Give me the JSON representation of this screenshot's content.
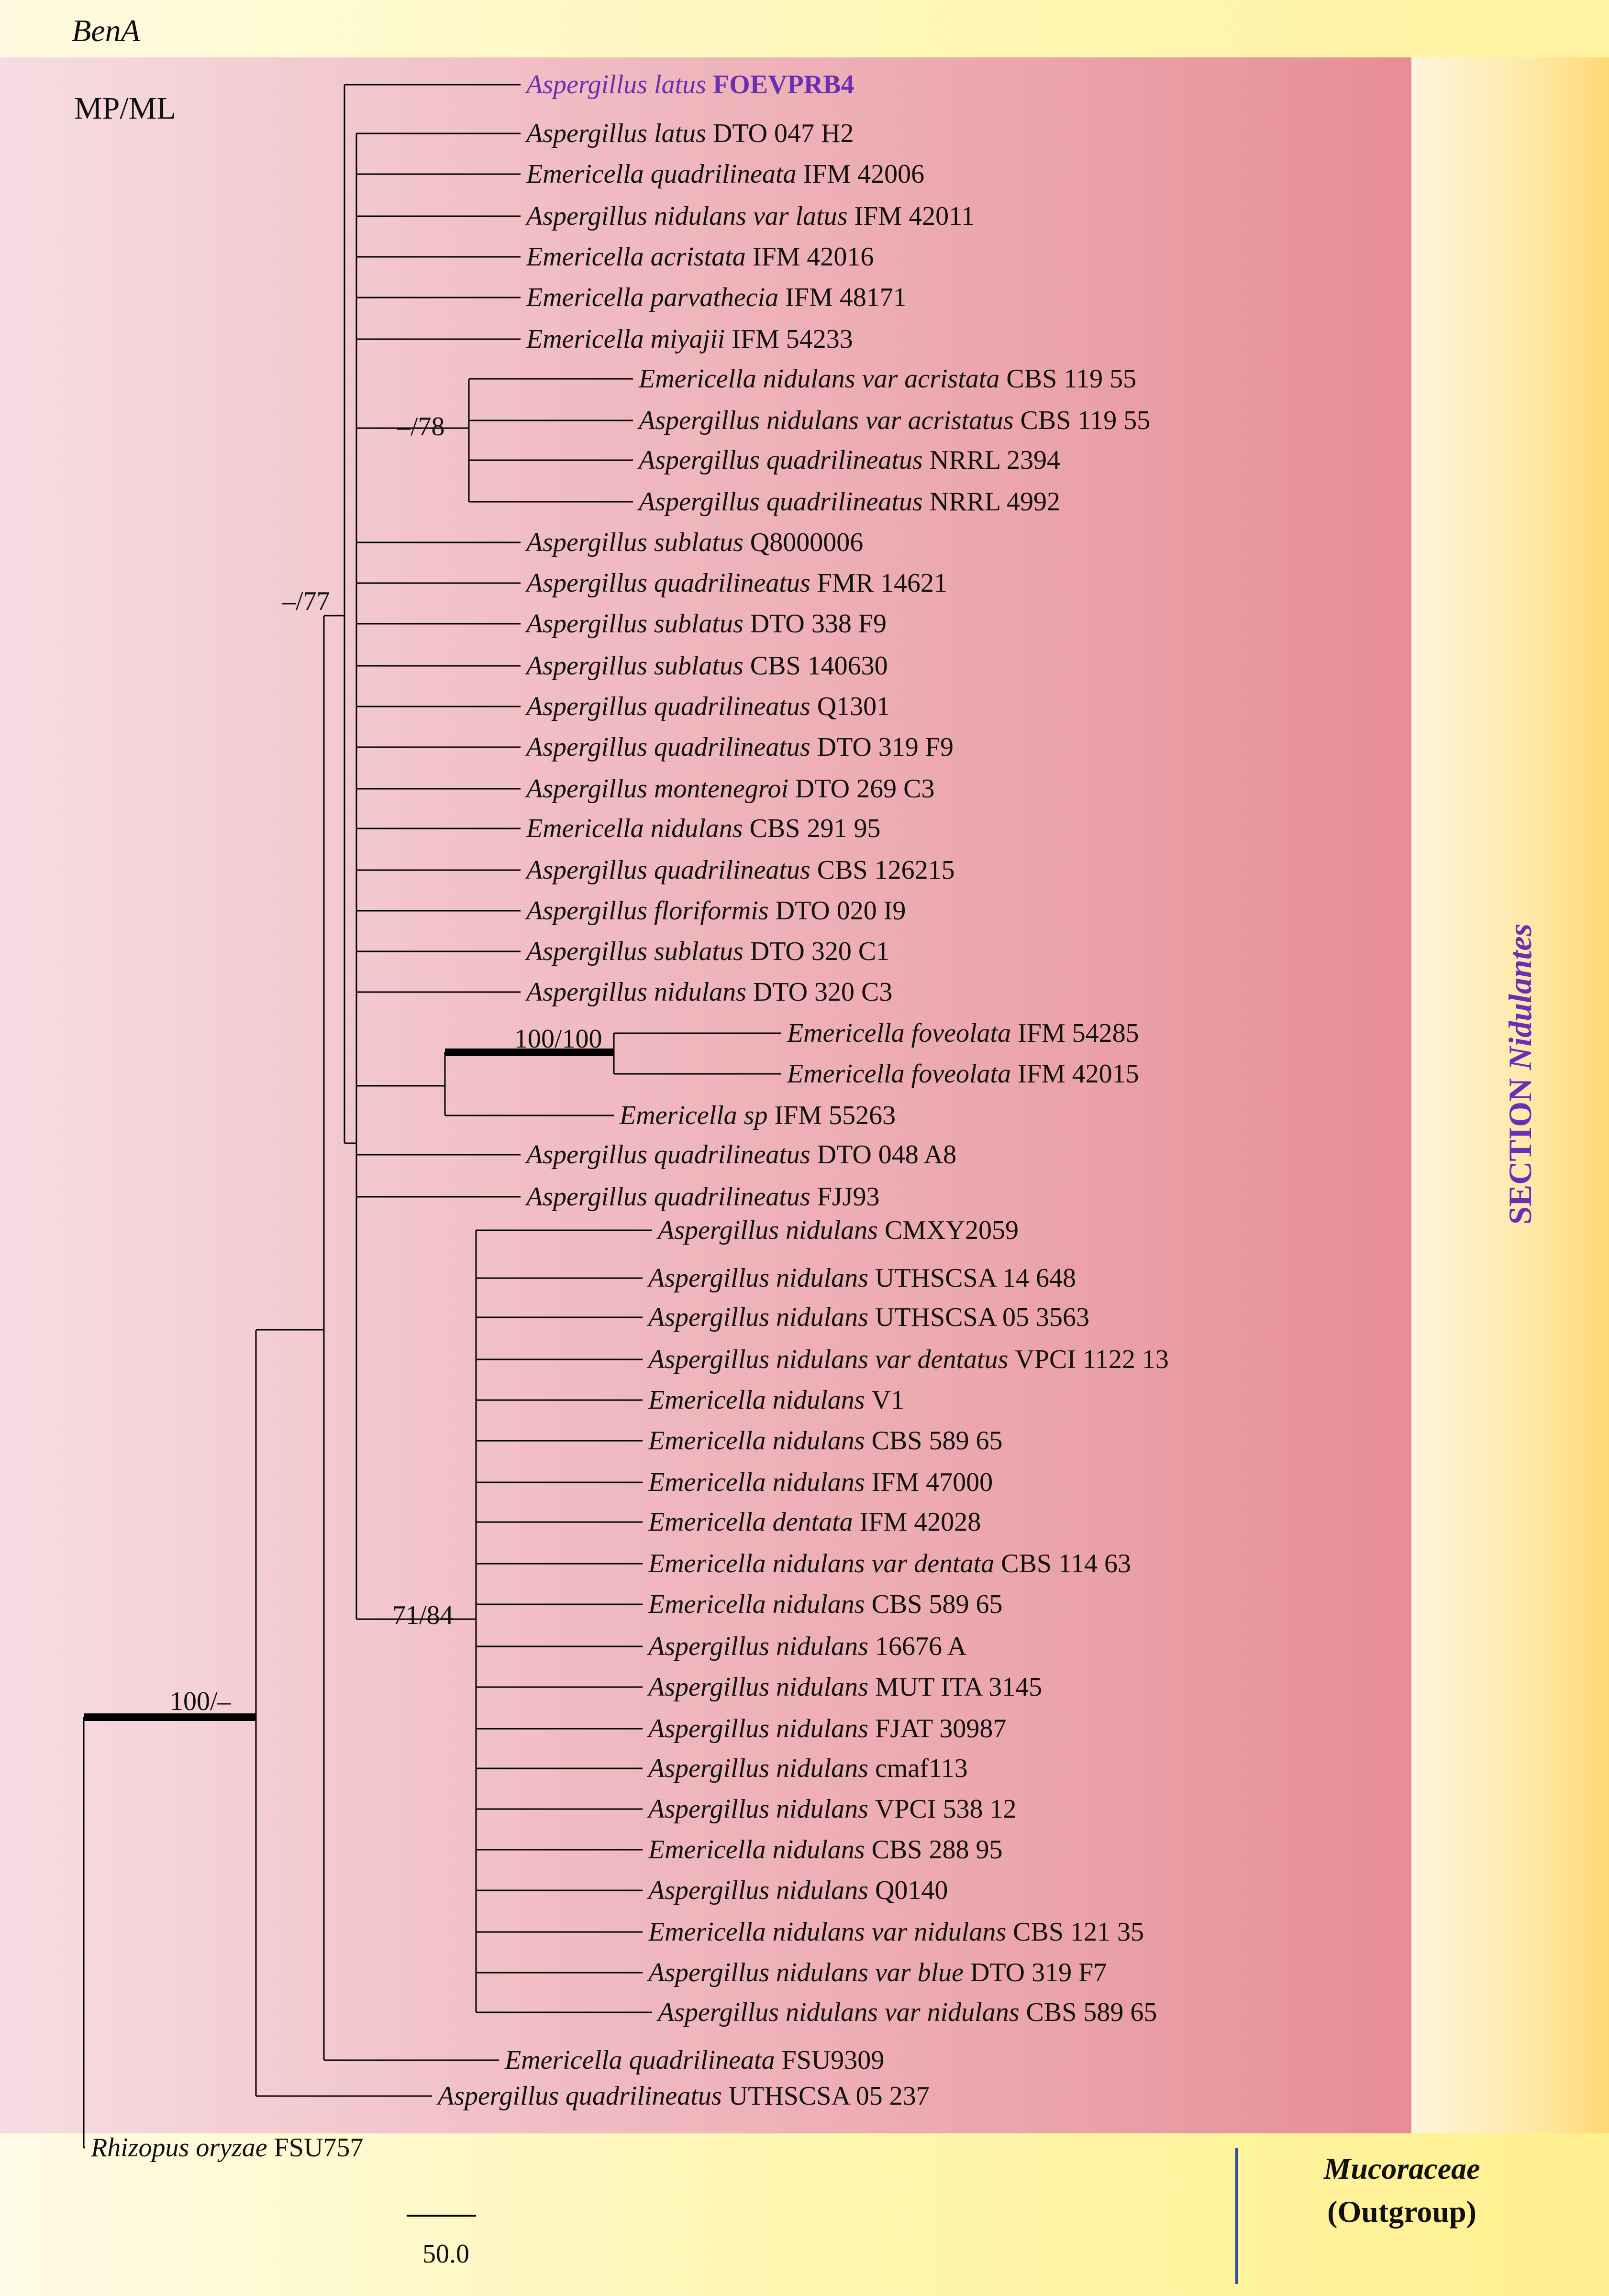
{
  "gene_label": "BenA",
  "method_label": "MP/ML",
  "section_label_prefix": "SECTION ",
  "section_label_name": "Nidulantes",
  "outgroup_family": "Mucoraceae",
  "outgroup_tag": "(Outgroup)",
  "scale_bar_label": "50.0",
  "colors": {
    "highlight": "#6a2fb5",
    "section_text": "#6a2fb5",
    "outgroup_line": "#2f4f9a"
  },
  "support_values": [
    {
      "id": "c78",
      "text": "–/78"
    },
    {
      "id": "c77",
      "text": "–/77"
    },
    {
      "id": "c100100",
      "text": "100/100"
    },
    {
      "id": "c7184",
      "text": "71/84"
    },
    {
      "id": "c100",
      "text": "100/–"
    }
  ],
  "taxa": [
    {
      "species": "Aspergillus latus",
      "strain": "FOEVPRB4",
      "highlight": true
    },
    {
      "species": "Aspergillus latus",
      "strain": "DTO 047 H2"
    },
    {
      "species": "Emericella quadrilineata",
      "strain": "IFM 42006"
    },
    {
      "species": "Aspergillus nidulans var latus",
      "strain": "IFM 42011"
    },
    {
      "species": "Emericella acristata",
      "strain": "IFM 42016"
    },
    {
      "species": "Emericella parvathecia",
      "strain": "IFM 48171"
    },
    {
      "species": "Emericella miyajii",
      "strain": "IFM 54233"
    },
    {
      "species": "Emericella nidulans var acristata",
      "strain": "CBS 119 55"
    },
    {
      "species": "Aspergillus nidulans var acristatus",
      "strain": "CBS 119 55"
    },
    {
      "species": "Aspergillus quadrilineatus",
      "strain": "NRRL 2394"
    },
    {
      "species": "Aspergillus quadrilineatus",
      "strain": "NRRL 4992"
    },
    {
      "species": "Aspergillus sublatus",
      "strain": "Q8000006"
    },
    {
      "species": "Aspergillus quadrilineatus",
      "strain": "FMR 14621"
    },
    {
      "species": "Aspergillus sublatus",
      "strain": "DTO 338 F9"
    },
    {
      "species": "Aspergillus sublatus",
      "strain": "CBS 140630"
    },
    {
      "species": "Aspergillus quadrilineatus",
      "strain": "Q1301"
    },
    {
      "species": "Aspergillus quadrilineatus",
      "strain": "DTO 319 F9"
    },
    {
      "species": "Aspergillus montenegroi",
      "strain": "DTO 269 C3"
    },
    {
      "species": "Emericella nidulans",
      "strain": "CBS 291 95"
    },
    {
      "species": "Aspergillus quadrilineatus",
      "strain": "CBS 126215"
    },
    {
      "species": "Aspergillus floriformis",
      "strain": "DTO 020 I9"
    },
    {
      "species": "Aspergillus sublatus",
      "strain": "DTO 320 C1"
    },
    {
      "species": "Aspergillus nidulans",
      "strain": "DTO 320 C3"
    },
    {
      "species": "Emericella foveolata",
      "strain": "IFM 54285"
    },
    {
      "species": "Emericella foveolata",
      "strain": "IFM 42015"
    },
    {
      "species": "Emericella sp",
      "strain": "IFM 55263"
    },
    {
      "species": "Aspergillus quadrilineatus",
      "strain": "DTO 048 A8"
    },
    {
      "species": "Aspergillus quadrilineatus",
      "strain": "FJJ93"
    },
    {
      "species": "Aspergillus nidulans",
      "strain": "CMXY2059"
    },
    {
      "species": "Aspergillus nidulans",
      "strain": "UTHSCSA 14 648"
    },
    {
      "species": "Aspergillus nidulans",
      "strain": "UTHSCSA 05 3563"
    },
    {
      "species": "Aspergillus nidulans var dentatus",
      "strain": "VPCI 1122 13"
    },
    {
      "species": "Emericella nidulans",
      "strain": "V1"
    },
    {
      "species": "Emericella nidulans",
      "strain": "CBS 589 65"
    },
    {
      "species": "Emericella nidulans",
      "strain": "IFM 47000"
    },
    {
      "species": "Emericella dentata",
      "strain": "IFM 42028"
    },
    {
      "species": "Emericella nidulans var dentata",
      "strain": "CBS 114 63"
    },
    {
      "species": "Emericella nidulans",
      "strain": "CBS 589 65"
    },
    {
      "species": "Aspergillus nidulans",
      "strain": "16676 A"
    },
    {
      "species": "Aspergillus nidulans",
      "strain": "MUT ITA 3145"
    },
    {
      "species": "Aspergillus nidulans",
      "strain": "FJAT 30987"
    },
    {
      "species": "Aspergillus nidulans",
      "strain": "cmaf113"
    },
    {
      "species": "Aspergillus nidulans",
      "strain": "VPCI 538 12"
    },
    {
      "species": "Emericella nidulans",
      "strain": "CBS 288 95"
    },
    {
      "species": "Aspergillus nidulans",
      "strain": "Q0140"
    },
    {
      "species": "Emericella nidulans var nidulans",
      "strain": "CBS 121 35"
    },
    {
      "species": "Aspergillus nidulans var blue",
      "strain": "DTO 319 F7"
    },
    {
      "species": "Aspergillus nidulans var nidulans",
      "strain": "CBS 589 65"
    },
    {
      "species": "Emericella quadrilineata",
      "strain": "FSU9309"
    },
    {
      "species": "Aspergillus quadrilineatus",
      "strain": "UTHSCSA 05 237"
    },
    {
      "species": "Rhizopus oryzae",
      "strain": "FSU757"
    }
  ]
}
